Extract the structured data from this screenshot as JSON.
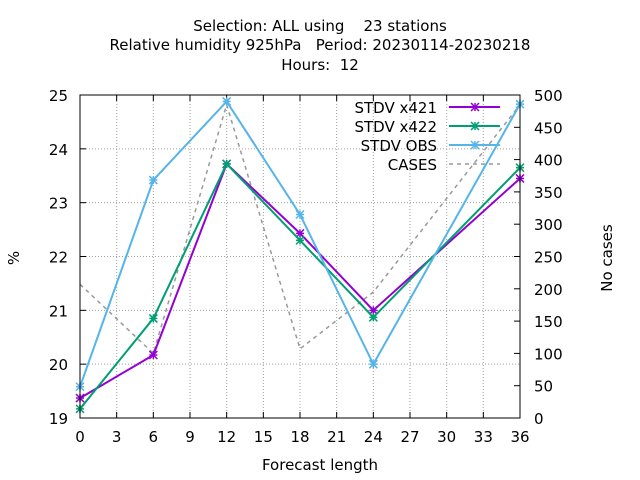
{
  "title_lines": [
    "Selection: ALL using    23 stations",
    "Relative humidity 925hPa   Period: 20230114-20230218",
    "Hours:  12"
  ],
  "chart_data": {
    "type": "line",
    "title": "Selection: ALL using    23 stations",
    "subtitle": "Relative humidity 925hPa   Period: 20230114-20230218",
    "hours_line": "Hours:  12",
    "xlabel": "Forecast length",
    "ylabel": "%",
    "y2label": "No cases",
    "x": [
      0,
      6,
      12,
      18,
      24,
      36
    ],
    "xlim": [
      0,
      36
    ],
    "ylim": [
      19,
      25
    ],
    "y2lim": [
      0,
      500
    ],
    "x_ticks": [
      0,
      3,
      6,
      9,
      12,
      15,
      18,
      21,
      24,
      27,
      30,
      33,
      36
    ],
    "y_ticks": [
      19,
      20,
      21,
      22,
      23,
      24,
      25
    ],
    "y2_ticks": [
      0,
      50,
      100,
      150,
      200,
      250,
      300,
      350,
      400,
      450,
      500
    ],
    "grid": true,
    "legend_position": "top-right",
    "series": [
      {
        "name": "STDV x421",
        "axis": "y",
        "color": "#9400d3",
        "dashed": false,
        "marker": true,
        "values": [
          19.37,
          20.17,
          23.72,
          22.43,
          21.0,
          23.45
        ]
      },
      {
        "name": "STDV x422",
        "axis": "y",
        "color": "#009e73",
        "dashed": false,
        "marker": true,
        "values": [
          19.17,
          20.85,
          23.72,
          22.3,
          20.87,
          23.65
        ]
      },
      {
        "name": "STDV OBS",
        "axis": "y",
        "color": "#56b4e9",
        "dashed": false,
        "marker": true,
        "values": [
          19.58,
          23.42,
          24.88,
          22.78,
          20.0,
          24.83
        ]
      },
      {
        "name": "CASES",
        "axis": "y2",
        "color": "#999999",
        "dashed": true,
        "marker": false,
        "values": [
          207,
          100,
          485,
          107,
          195,
          485
        ]
      }
    ]
  }
}
